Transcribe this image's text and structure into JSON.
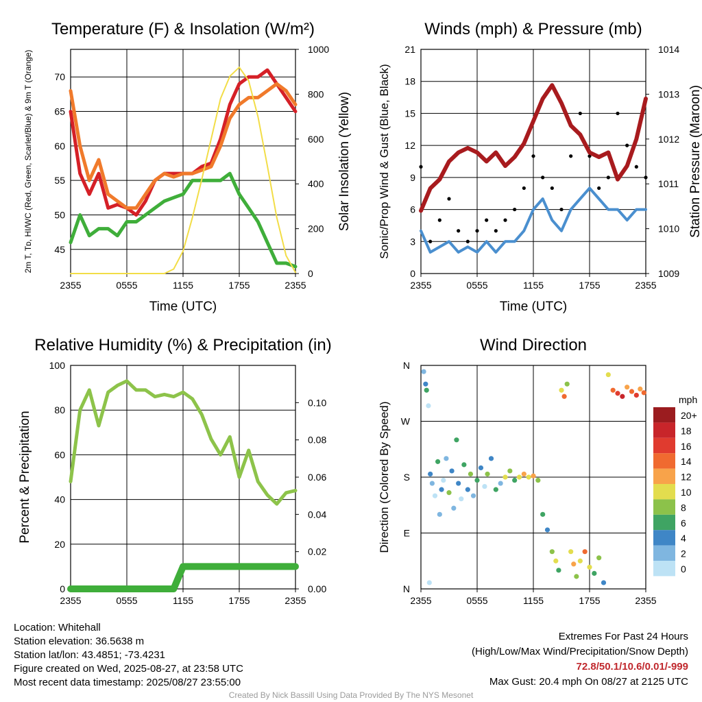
{
  "chart_data": [
    {
      "type": "line",
      "title": "Temperature (F) & Insolation (W/m²)",
      "xlabel": "Time (UTC)",
      "ylabel_left": "2m T, Tᴅ, HI/WC (Red, Green, Scarlet/Blue) & 9m T (Orange)",
      "ylabel_right": "Solar Insolation (Yellow)",
      "x_ticks": [
        "2355",
        "0555",
        "1155",
        "1755",
        "2355"
      ],
      "ylim_left": [
        41.5,
        74
      ],
      "yticks_left": [
        45,
        50,
        55,
        60,
        65,
        70
      ],
      "ylim_right": [
        0,
        1000
      ],
      "yticks_right": [
        0,
        200,
        400,
        600,
        800,
        1000
      ],
      "x_hours": [
        0,
        1,
        2,
        3,
        4,
        5,
        6,
        7,
        8,
        9,
        10,
        11,
        12,
        13,
        14,
        15,
        16,
        17,
        18,
        19,
        20,
        21,
        22,
        23,
        24
      ],
      "series": [
        {
          "color": "#d52027",
          "axis": "left",
          "values": [
            65,
            56,
            53,
            56,
            51,
            51.5,
            51,
            50,
            52,
            55,
            56,
            56,
            56,
            56,
            57,
            57.5,
            61,
            66,
            69,
            70,
            70,
            71,
            69,
            67,
            65
          ]
        },
        {
          "color": "#f07a2b",
          "axis": "left",
          "values": [
            68,
            60,
            55,
            58,
            53,
            52,
            51,
            51,
            53,
            55,
            56,
            55.5,
            56,
            56,
            56.5,
            57,
            60,
            64,
            66,
            67,
            67,
            68,
            69,
            68,
            66
          ]
        },
        {
          "color": "#3fae3a",
          "axis": "left",
          "values": [
            46,
            50,
            47,
            48,
            48,
            47,
            49,
            49,
            50,
            51,
            52,
            52.5,
            53,
            55,
            55,
            55,
            55,
            56,
            53,
            51,
            49,
            46,
            43,
            43,
            42.5
          ]
        },
        {
          "color": "#f2dd47",
          "axis": "right",
          "values": [
            0,
            0,
            0,
            0,
            0,
            0,
            0,
            0,
            0,
            0,
            0,
            20,
            100,
            250,
            420,
            600,
            780,
            880,
            920,
            860,
            700,
            480,
            250,
            80,
            5
          ]
        }
      ]
    },
    {
      "type": "line",
      "title": "Winds (mph) & Pressure (mb)",
      "xlabel": "Time (UTC)",
      "ylabel_left": "Sonic/Prop Wind & Gust (Blue, Black)",
      "ylabel_right": "Station Pressure (Maroon)",
      "x_ticks": [
        "2355",
        "0555",
        "1155",
        "1755",
        "2355"
      ],
      "ylim_left": [
        0,
        21
      ],
      "yticks_left": [
        0,
        3,
        6,
        9,
        12,
        15,
        18,
        21
      ],
      "ylim_right": [
        1009,
        1014
      ],
      "yticks_right": [
        1009,
        1010,
        1011,
        1012,
        1013,
        1014
      ],
      "x_hours": [
        0,
        1,
        2,
        3,
        4,
        5,
        6,
        7,
        8,
        9,
        10,
        11,
        12,
        13,
        14,
        15,
        16,
        17,
        18,
        19,
        20,
        21,
        22,
        23,
        24
      ],
      "wind": [
        4,
        2,
        2.5,
        3,
        2,
        2.5,
        2,
        3,
        2,
        3,
        3,
        4,
        6,
        7,
        5,
        4,
        6,
        7,
        8,
        7,
        6,
        6,
        5,
        6,
        6
      ],
      "gust": [
        10,
        3,
        5,
        7,
        4,
        3,
        4,
        5,
        4,
        5,
        6,
        8,
        11,
        9,
        8,
        6,
        11,
        15,
        11,
        8,
        9,
        15,
        12,
        10,
        9
      ],
      "pressure": [
        1010.4,
        1010.9,
        1011.1,
        1011.5,
        1011.7,
        1011.8,
        1011.7,
        1011.5,
        1011.7,
        1011.4,
        1011.6,
        1011.9,
        1012.4,
        1012.9,
        1013.2,
        1012.8,
        1012.3,
        1012.1,
        1011.7,
        1011.6,
        1011.7,
        1011.1,
        1011.4,
        1012,
        1012.9
      ],
      "colors": {
        "wind": "#4a8fcf",
        "gust": "#000000",
        "pressure": "#a81b1e"
      }
    },
    {
      "type": "line",
      "title": "Relative Humidity (%) & Precipitation (in)",
      "xlabel": "",
      "ylabel_left": "Percent & Precipitation",
      "x_ticks": [
        "2355",
        "0555",
        "1155",
        "1755",
        "2355"
      ],
      "ylim_left": [
        0,
        100
      ],
      "yticks_left": [
        0,
        20,
        40,
        60,
        80,
        100
      ],
      "ylim_right": [
        0,
        0.12
      ],
      "yticks_right": [
        "0.00",
        "0.02",
        "0.04",
        "0.06",
        "0.08",
        "0.10"
      ],
      "x_hours": [
        0,
        1,
        2,
        3,
        4,
        5,
        6,
        7,
        8,
        9,
        10,
        11,
        12,
        13,
        14,
        15,
        16,
        17,
        18,
        19,
        20,
        21,
        22,
        23,
        24
      ],
      "rh": [
        48,
        80,
        89,
        73,
        88,
        91,
        93,
        89,
        89,
        86,
        87,
        86,
        88,
        85,
        78,
        67,
        60,
        68,
        50,
        62,
        48,
        42,
        38,
        43,
        44
      ],
      "precip": [
        0,
        0,
        0,
        0,
        0,
        0,
        0,
        0,
        0,
        0,
        0,
        0,
        0.012,
        0.012,
        0.012,
        0.012,
        0.012,
        0.012,
        0.012,
        0.012,
        0.012,
        0.012,
        0.012,
        0.012,
        0.012
      ],
      "colors": {
        "rh": "#8dc34a",
        "precip": "#3fae3a"
      }
    },
    {
      "type": "scatter",
      "title": "Wind Direction",
      "ylabel_left": "Direction (Colored By Speed)",
      "x_ticks": [
        "2355",
        "0555",
        "1155",
        "1755",
        "2355"
      ],
      "y_ticks": [
        "N",
        "E",
        "S",
        "W",
        "N"
      ],
      "ylim": [
        0,
        360
      ],
      "points": [
        [
          0.3,
          350,
          1
        ],
        [
          0.5,
          330,
          2
        ],
        [
          0.6,
          320,
          3
        ],
        [
          0.8,
          295,
          0
        ],
        [
          0.9,
          10,
          0
        ],
        [
          1.0,
          185,
          2
        ],
        [
          1.2,
          170,
          1
        ],
        [
          1.5,
          150,
          0
        ],
        [
          1.8,
          205,
          3
        ],
        [
          2.0,
          120,
          1
        ],
        [
          2.2,
          160,
          2
        ],
        [
          2.4,
          175,
          0
        ],
        [
          2.7,
          210,
          1
        ],
        [
          3.0,
          155,
          4
        ],
        [
          3.3,
          190,
          2
        ],
        [
          3.5,
          130,
          1
        ],
        [
          3.8,
          240,
          3
        ],
        [
          4.0,
          170,
          2
        ],
        [
          4.3,
          145,
          0
        ],
        [
          4.6,
          200,
          3
        ],
        [
          5.0,
          160,
          2
        ],
        [
          5.3,
          185,
          4
        ],
        [
          5.6,
          150,
          1
        ],
        [
          6.0,
          175,
          3
        ],
        [
          6.4,
          195,
          2
        ],
        [
          6.8,
          165,
          0
        ],
        [
          7.1,
          185,
          4
        ],
        [
          7.5,
          210,
          2
        ],
        [
          8.0,
          160,
          3
        ],
        [
          8.5,
          170,
          1
        ],
        [
          9.0,
          180,
          5
        ],
        [
          9.5,
          190,
          4
        ],
        [
          10.0,
          175,
          3
        ],
        [
          10.5,
          180,
          5
        ],
        [
          11.0,
          185,
          6
        ],
        [
          11.5,
          180,
          5
        ],
        [
          12.0,
          182,
          6
        ],
        [
          12.5,
          175,
          4
        ],
        [
          13.0,
          120,
          3
        ],
        [
          13.5,
          95,
          2
        ],
        [
          14.0,
          60,
          4
        ],
        [
          14.4,
          45,
          5
        ],
        [
          14.7,
          30,
          3
        ],
        [
          15.0,
          320,
          5
        ],
        [
          15.3,
          310,
          7
        ],
        [
          15.6,
          330,
          4
        ],
        [
          16.0,
          60,
          5
        ],
        [
          16.3,
          40,
          6
        ],
        [
          16.6,
          20,
          4
        ],
        [
          17.0,
          45,
          5
        ],
        [
          17.5,
          60,
          7
        ],
        [
          18.0,
          35,
          5
        ],
        [
          18.5,
          25,
          3
        ],
        [
          19.0,
          50,
          4
        ],
        [
          19.5,
          10,
          2
        ],
        [
          20.0,
          345,
          5
        ],
        [
          20.5,
          320,
          7
        ],
        [
          21.0,
          315,
          8
        ],
        [
          21.5,
          310,
          9
        ],
        [
          22.0,
          325,
          6
        ],
        [
          22.5,
          318,
          7
        ],
        [
          23.0,
          312,
          8
        ],
        [
          23.4,
          322,
          6
        ],
        [
          23.8,
          316,
          7
        ]
      ],
      "legend_title": "mph",
      "legend_labels": [
        "20+",
        "18",
        "16",
        "14",
        "12",
        "10",
        "8",
        "6",
        "4",
        "2",
        "0"
      ],
      "legend_colors": [
        "#9b1c1f",
        "#c8252a",
        "#e03b2f",
        "#f06a30",
        "#f8a34a",
        "#e3dd4e",
        "#8cc24a",
        "#3fa463",
        "#3f86c6",
        "#7fb6e0",
        "#bde2f5"
      ]
    }
  ],
  "info": {
    "location": "Location: Whitehall",
    "elevation": "Station elevation: 36.5638 m",
    "latlon": "Station lat/lon: 43.4851; -73.4231",
    "created": "Figure created on Wed, 2025-08-27, at 23:58 UTC",
    "recent": "Most recent data timestamp: 2025/08/27 23:55:00"
  },
  "extremes": {
    "title": "Extremes For Past 24 Hours",
    "subtitle": "(High/Low/Max Wind/Precipitation/Snow Depth)",
    "values": "72.8/50.1/10.6/0.01/-999",
    "max_gust": "Max Gust: 20.4 mph On 08/27 at 2125 UTC"
  },
  "credit": "Created By Nick Bassill Using Data Provided By The NYS Mesonet"
}
